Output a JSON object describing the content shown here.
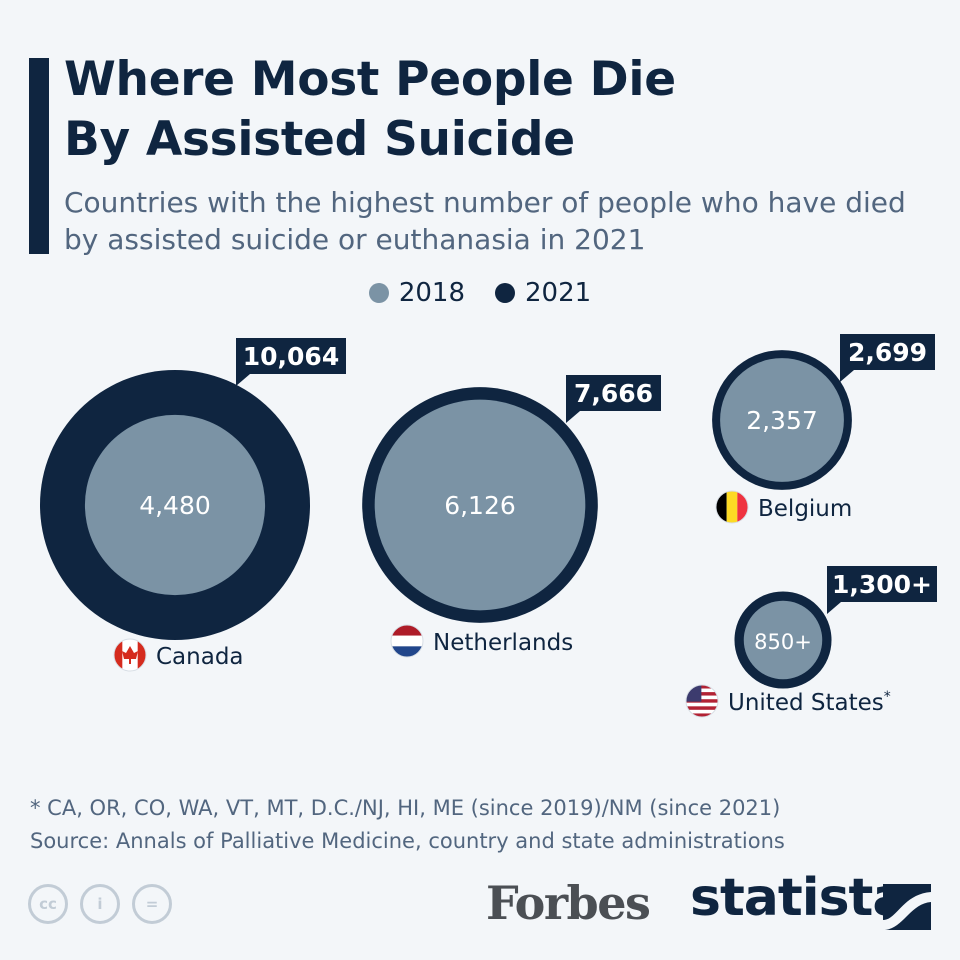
{
  "title": "Where Most People Die\nBy Assisted Suicide",
  "subtitle": "Countries with the highest number of people who have died by assisted suicide or euthanasia in 2021",
  "legend": [
    {
      "label": "2018",
      "color": "#7b93a5"
    },
    {
      "label": "2021",
      "color": "#0f2540"
    }
  ],
  "chart_data": {
    "type": "bubble",
    "title": "Where Most People Die By Assisted Suicide",
    "series": [
      {
        "name": "2018",
        "color": "#7b93a5"
      },
      {
        "name": "2021",
        "color": "#0f2540"
      }
    ],
    "categories": [
      "Canada",
      "Netherlands",
      "Belgium",
      "United States"
    ],
    "values_2018": [
      4480,
      6126,
      2357,
      850
    ],
    "values_2021": [
      10064,
      7666,
      2699,
      1300
    ],
    "value_labels_2018": [
      "4,480",
      "6,126",
      "2,357",
      "850+"
    ],
    "value_labels_2021": [
      "10,064",
      "7,666",
      "2,699",
      "1,300+"
    ],
    "country_labels": [
      "Canada",
      "Netherlands",
      "Belgium",
      "United States"
    ],
    "label_suffixes": [
      "",
      "",
      "",
      "*"
    ],
    "flags": [
      "canada-flag",
      "netherlands-flag",
      "belgium-flag",
      "united-states-flag"
    ]
  },
  "footnote": "* CA, OR, CO, WA, VT, MT, D.C./NJ, HI, ME (since 2019)/NM (since 2021)",
  "source": "Source: Annals of Palliative Medicine, country and state administrations",
  "license_icons": [
    "cc-icon",
    "attribution-icon",
    "no-derivatives-icon"
  ],
  "license_glyphs": [
    "cc",
    "i",
    "="
  ],
  "brand_forbes": "Forbes",
  "brand_statista": "statista"
}
